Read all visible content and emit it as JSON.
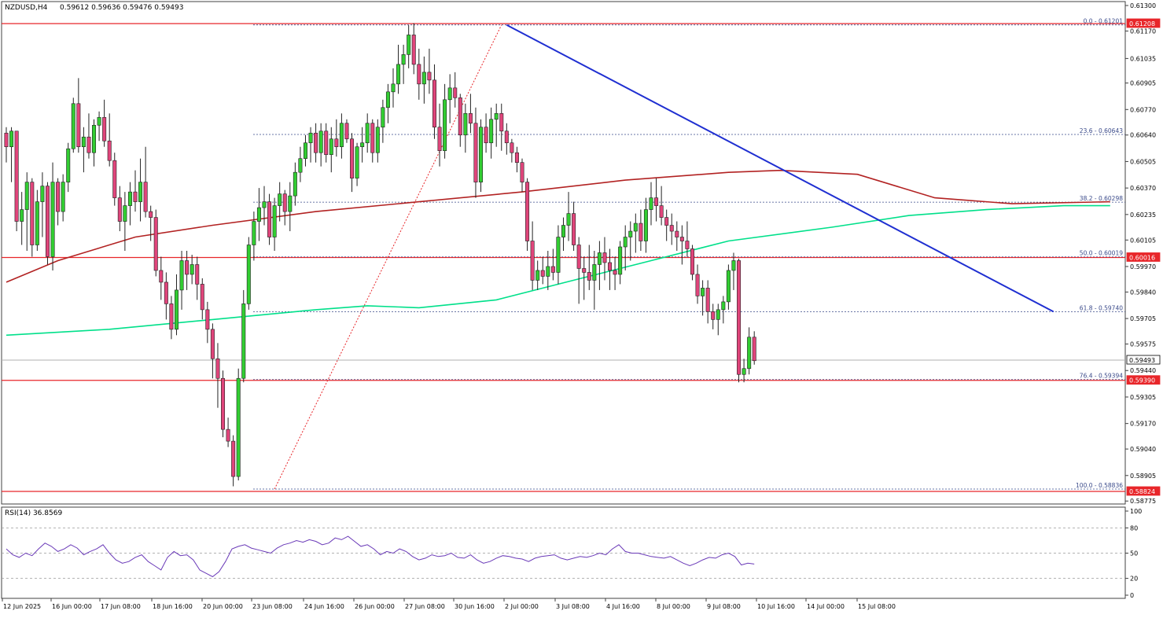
{
  "header": {
    "symbol_timeframe": "NZDUSD,H4",
    "ohlc": "0.59612 0.59636 0.59476 0.59493"
  },
  "colors": {
    "bull": "#32cd32",
    "bear": "#e0457b",
    "ma_fast": "#00e08a",
    "ma_slow": "#b22222",
    "trendline": "#1f2fd1",
    "fib_level": "#3a4a8a",
    "hline": "#e8262a",
    "rsi": "#6a3ab8"
  },
  "chart_data": {
    "type": "candlestick",
    "symbol": "NZDUSD",
    "timeframe": "H4",
    "y_ticks": [
      0.613,
      0.6117,
      0.6103,
      0.60905,
      0.6077,
      0.6064,
      0.60505,
      0.6037,
      0.60235,
      0.60105,
      0.5997,
      0.5984,
      0.59705,
      0.59575,
      0.5944,
      0.59305,
      0.5917,
      0.5904,
      0.58905,
      0.58775
    ],
    "y_ticks_labels": [
      "0.61300",
      "0.61170",
      "0.61035",
      "0.60905",
      "0.60770",
      "0.60640",
      "0.60505",
      "0.60370",
      "0.60235",
      "0.60105",
      "0.59970",
      "0.59840",
      "0.59705",
      "0.59575",
      "0.59440",
      "0.59305",
      "0.59170",
      "0.59040",
      "0.58905",
      "0.58775"
    ],
    "x_tick_labels": [
      "12 Jun 2025",
      "16 Jun 00:00",
      "17 Jun 08:00",
      "18 Jun 16:00",
      "20 Jun 00:00",
      "23 Jun 08:00",
      "24 Jun 16:00",
      "26 Jun 00:00",
      "27 Jun 08:00",
      "30 Jun 16:00",
      "2 Jul 00:00",
      "3 Jul 08:00",
      "4 Jul 16:00",
      "8 Jul 00:00",
      "9 Jul 08:00",
      "10 Jul 16:00",
      "14 Jul 00:00",
      "15 Jul 08:00"
    ],
    "price_tags": [
      {
        "label": "0.61208",
        "value": 0.61208,
        "bg": "#e8262a"
      },
      {
        "label": "0.60016",
        "value": 0.60016,
        "bg": "#e8262a"
      },
      {
        "label": "0.59493",
        "value": 0.59493,
        "bg": "#ffffff"
      },
      {
        "label": "0.59390",
        "value": 0.5939,
        "bg": "#e8262a"
      },
      {
        "label": "0.58824",
        "value": 0.58824,
        "bg": "#e8262a"
      }
    ],
    "horizontal_lines": [
      0.61208,
      0.60016,
      0.5939,
      0.58824
    ],
    "current_price": 0.59493,
    "fibonacci": [
      {
        "label": "0.0 - 0.61201",
        "value": 0.61201
      },
      {
        "label": "23.6 - 0.60643",
        "value": 0.60643
      },
      {
        "label": "38.2 - 0.60298",
        "value": 0.60298
      },
      {
        "label": "50.0 - 0.60019",
        "value": 0.60019
      },
      {
        "label": "61.8 - 0.59740",
        "value": 0.5974
      },
      {
        "label": "76.4 - 0.59394",
        "value": 0.59394
      },
      {
        "label": "100.0 - 0.58836",
        "value": 0.58836
      }
    ],
    "fib_anchor_line": {
      "from": {
        "bar": 52,
        "price": 0.58836
      },
      "to": {
        "bar": 96,
        "price": 0.61201
      }
    },
    "trendline": {
      "from": {
        "bar": 97,
        "price": 0.61201
      },
      "to": {
        "bar": 203,
        "price": 0.5974
      }
    },
    "candles": [
      [
        0.6065,
        0.6068,
        0.605,
        0.6058
      ],
      [
        0.6058,
        0.6068,
        0.604,
        0.6066
      ],
      [
        0.6066,
        0.6066,
        0.6015,
        0.602
      ],
      [
        0.602,
        0.6035,
        0.6008,
        0.6026
      ],
      [
        0.6026,
        0.6045,
        0.6005,
        0.604
      ],
      [
        0.604,
        0.6042,
        0.6002,
        0.6008
      ],
      [
        0.6008,
        0.6036,
        0.6005,
        0.603
      ],
      [
        0.603,
        0.6045,
        0.6012,
        0.6038
      ],
      [
        0.6038,
        0.604,
        0.5998,
        0.6002
      ],
      [
        0.6002,
        0.605,
        0.5995,
        0.604
      ],
      [
        0.604,
        0.6042,
        0.6018,
        0.6025
      ],
      [
        0.6025,
        0.6044,
        0.602,
        0.604
      ],
      [
        0.604,
        0.606,
        0.6035,
        0.6057
      ],
      [
        0.6057,
        0.6083,
        0.6055,
        0.608
      ],
      [
        0.608,
        0.6093,
        0.6055,
        0.6058
      ],
      [
        0.6058,
        0.6068,
        0.6045,
        0.6063
      ],
      [
        0.6063,
        0.6075,
        0.6052,
        0.6055
      ],
      [
        0.6055,
        0.6072,
        0.6048,
        0.6069
      ],
      [
        0.6069,
        0.6076,
        0.6061,
        0.6073
      ],
      [
        0.6073,
        0.6082,
        0.6058,
        0.6061
      ],
      [
        0.6061,
        0.6075,
        0.6048,
        0.6051
      ],
      [
        0.6051,
        0.6055,
        0.6028,
        0.6032
      ],
      [
        0.6032,
        0.6038,
        0.6015,
        0.602
      ],
      [
        0.602,
        0.6035,
        0.6005,
        0.6028
      ],
      [
        0.6028,
        0.604,
        0.6018,
        0.6035
      ],
      [
        0.6035,
        0.6046,
        0.6025,
        0.603
      ],
      [
        0.603,
        0.6052,
        0.602,
        0.604
      ],
      [
        0.604,
        0.6058,
        0.6022,
        0.6025
      ],
      [
        0.6025,
        0.6028,
        0.601,
        0.6022
      ],
      [
        0.6022,
        0.6026,
        0.5992,
        0.5995
      ],
      [
        0.5995,
        0.6002,
        0.598,
        0.5989
      ],
      [
        0.5989,
        0.5994,
        0.597,
        0.5978
      ],
      [
        0.5978,
        0.5982,
        0.596,
        0.5965
      ],
      [
        0.5965,
        0.5993,
        0.5962,
        0.5985
      ],
      [
        0.5985,
        0.6005,
        0.5975,
        0.6
      ],
      [
        0.6,
        0.6005,
        0.5985,
        0.5993
      ],
      [
        0.5993,
        0.6003,
        0.5988,
        0.5998
      ],
      [
        0.5998,
        0.6002,
        0.598,
        0.5988
      ],
      [
        0.5988,
        0.5991,
        0.597,
        0.5975
      ],
      [
        0.5975,
        0.5979,
        0.5958,
        0.5965
      ],
      [
        0.5965,
        0.5968,
        0.594,
        0.595
      ],
      [
        0.595,
        0.5958,
        0.5925,
        0.594
      ],
      [
        0.594,
        0.5944,
        0.591,
        0.5914
      ],
      [
        0.5914,
        0.592,
        0.5905,
        0.5908
      ],
      [
        0.5908,
        0.5911,
        0.5885,
        0.589
      ],
      [
        0.589,
        0.5945,
        0.5888,
        0.594
      ],
      [
        0.594,
        0.5985,
        0.5938,
        0.5978
      ],
      [
        0.5978,
        0.6012,
        0.5975,
        0.6008
      ],
      [
        0.6008,
        0.6025,
        0.6,
        0.602
      ],
      [
        0.602,
        0.6037,
        0.601,
        0.6027
      ],
      [
        0.6027,
        0.6038,
        0.6018,
        0.603
      ],
      [
        0.603,
        0.6034,
        0.6008,
        0.6012
      ],
      [
        0.6012,
        0.6032,
        0.6005,
        0.6028
      ],
      [
        0.6028,
        0.604,
        0.602,
        0.6034
      ],
      [
        0.6034,
        0.6036,
        0.6018,
        0.6025
      ],
      [
        0.6025,
        0.604,
        0.6015,
        0.6033
      ],
      [
        0.6033,
        0.605,
        0.6028,
        0.6045
      ],
      [
        0.6045,
        0.6058,
        0.604,
        0.6052
      ],
      [
        0.6052,
        0.6064,
        0.6048,
        0.606
      ],
      [
        0.606,
        0.6068,
        0.605,
        0.6065
      ],
      [
        0.6065,
        0.607,
        0.605,
        0.6055
      ],
      [
        0.6055,
        0.607,
        0.6048,
        0.6066
      ],
      [
        0.6066,
        0.607,
        0.605,
        0.6054
      ],
      [
        0.6054,
        0.6068,
        0.6045,
        0.6062
      ],
      [
        0.6062,
        0.6072,
        0.6053,
        0.6058
      ],
      [
        0.6058,
        0.6075,
        0.6052,
        0.607
      ],
      [
        0.607,
        0.6072,
        0.606,
        0.6062
      ],
      [
        0.6062,
        0.6065,
        0.6035,
        0.6042
      ],
      [
        0.6042,
        0.606,
        0.6038,
        0.6058
      ],
      [
        0.6058,
        0.6068,
        0.605,
        0.606
      ],
      [
        0.606,
        0.6075,
        0.6055,
        0.607
      ],
      [
        0.607,
        0.6072,
        0.605,
        0.6055
      ],
      [
        0.6055,
        0.6072,
        0.605,
        0.6068
      ],
      [
        0.6068,
        0.6082,
        0.606,
        0.6078
      ],
      [
        0.6078,
        0.609,
        0.607,
        0.6086
      ],
      [
        0.6086,
        0.6098,
        0.6078,
        0.609
      ],
      [
        0.609,
        0.611,
        0.6085,
        0.61
      ],
      [
        0.61,
        0.611,
        0.609,
        0.6105
      ],
      [
        0.6105,
        0.612,
        0.6098,
        0.6115
      ],
      [
        0.6115,
        0.6121,
        0.6095,
        0.61
      ],
      [
        0.61,
        0.6108,
        0.6082,
        0.609
      ],
      [
        0.609,
        0.6104,
        0.608,
        0.6096
      ],
      [
        0.6096,
        0.6108,
        0.6085,
        0.6092
      ],
      [
        0.6092,
        0.61,
        0.6062,
        0.6068
      ],
      [
        0.6068,
        0.608,
        0.6048,
        0.6056
      ],
      [
        0.6056,
        0.609,
        0.6052,
        0.6082
      ],
      [
        0.6082,
        0.6095,
        0.607,
        0.6088
      ],
      [
        0.6088,
        0.6096,
        0.6078,
        0.6083
      ],
      [
        0.6083,
        0.6085,
        0.6058,
        0.6064
      ],
      [
        0.6064,
        0.608,
        0.6055,
        0.6075
      ],
      [
        0.6075,
        0.6085,
        0.6065,
        0.607
      ],
      [
        0.607,
        0.6078,
        0.6032,
        0.604
      ],
      [
        0.604,
        0.6072,
        0.6035,
        0.6068
      ],
      [
        0.6068,
        0.6075,
        0.6055,
        0.606
      ],
      [
        0.606,
        0.6078,
        0.6052,
        0.6072
      ],
      [
        0.6072,
        0.608,
        0.6058,
        0.6075
      ],
      [
        0.6075,
        0.608,
        0.6056,
        0.6066
      ],
      [
        0.6066,
        0.607,
        0.6054,
        0.606
      ],
      [
        0.606,
        0.6062,
        0.605,
        0.6055
      ],
      [
        0.6055,
        0.6058,
        0.6045,
        0.605
      ],
      [
        0.605,
        0.6052,
        0.6035,
        0.604
      ],
      [
        0.604,
        0.6042,
        0.6005,
        0.601
      ],
      [
        0.601,
        0.602,
        0.5985,
        0.599
      ],
      [
        0.599,
        0.6,
        0.5985,
        0.5995
      ],
      [
        0.5995,
        0.6002,
        0.5988,
        0.5992
      ],
      [
        0.5992,
        0.6005,
        0.5985,
        0.5997
      ],
      [
        0.5997,
        0.6006,
        0.599,
        0.5994
      ],
      [
        0.5994,
        0.6018,
        0.5988,
        0.6012
      ],
      [
        0.6012,
        0.6022,
        0.6005,
        0.6018
      ],
      [
        0.6018,
        0.6035,
        0.601,
        0.6024
      ],
      [
        0.6024,
        0.603,
        0.6005,
        0.6008
      ],
      [
        0.6008,
        0.6012,
        0.5978,
        0.5996
      ],
      [
        0.5996,
        0.6002,
        0.598,
        0.5994
      ],
      [
        0.5994,
        0.6008,
        0.5985,
        0.599
      ],
      [
        0.599,
        0.6005,
        0.5975,
        0.5998
      ],
      [
        0.5998,
        0.601,
        0.5985,
        0.6004
      ],
      [
        0.6004,
        0.6012,
        0.599,
        0.5999
      ],
      [
        0.5999,
        0.6006,
        0.5985,
        0.5995
      ],
      [
        0.5995,
        0.6002,
        0.5985,
        0.5993
      ],
      [
        0.5993,
        0.601,
        0.5988,
        0.6007
      ],
      [
        0.6007,
        0.6018,
        0.5995,
        0.6012
      ],
      [
        0.6012,
        0.602,
        0.6,
        0.6015
      ],
      [
        0.6015,
        0.6024,
        0.6004,
        0.6019
      ],
      [
        0.6019,
        0.6026,
        0.6005,
        0.601
      ],
      [
        0.601,
        0.6032,
        0.6004,
        0.6026
      ],
      [
        0.6026,
        0.604,
        0.6018,
        0.6032
      ],
      [
        0.6032,
        0.6042,
        0.602,
        0.6028
      ],
      [
        0.6028,
        0.6038,
        0.6018,
        0.6022
      ],
      [
        0.6022,
        0.6026,
        0.601,
        0.6018
      ],
      [
        0.6018,
        0.6024,
        0.6008,
        0.6015
      ],
      [
        0.6015,
        0.602,
        0.6005,
        0.6012
      ],
      [
        0.6012,
        0.6018,
        0.5998,
        0.601
      ],
      [
        0.601,
        0.602,
        0.6002,
        0.6006
      ],
      [
        0.6006,
        0.6008,
        0.599,
        0.5993
      ],
      [
        0.5993,
        0.5998,
        0.5978,
        0.5982
      ],
      [
        0.5982,
        0.599,
        0.5972,
        0.5986
      ],
      [
        0.5986,
        0.599,
        0.5968,
        0.5974
      ],
      [
        0.5974,
        0.5978,
        0.5965,
        0.597
      ],
      [
        0.597,
        0.5978,
        0.5962,
        0.5975
      ],
      [
        0.5975,
        0.5982,
        0.5968,
        0.5979
      ],
      [
        0.5979,
        0.5998,
        0.5975,
        0.5995
      ],
      [
        0.5995,
        0.6004,
        0.5985,
        0.6
      ],
      [
        0.6,
        0.6001,
        0.5938,
        0.5942
      ],
      [
        0.5942,
        0.595,
        0.5938,
        0.5945
      ],
      [
        0.5945,
        0.5966,
        0.5942,
        0.5961
      ],
      [
        0.5961,
        0.5964,
        0.5947,
        0.5949
      ]
    ],
    "ma_fast_points": [
      [
        0,
        0.5962
      ],
      [
        20,
        0.5965
      ],
      [
        40,
        0.597
      ],
      [
        60,
        0.5975
      ],
      [
        70,
        0.5977
      ],
      [
        80,
        0.5976
      ],
      [
        95,
        0.598
      ],
      [
        110,
        0.599
      ],
      [
        125,
        0.6
      ],
      [
        140,
        0.601
      ],
      [
        160,
        0.6017
      ],
      [
        175,
        0.6023
      ],
      [
        190,
        0.6026
      ],
      [
        205,
        0.6028
      ],
      [
        214,
        0.6028
      ]
    ],
    "ma_slow_points": [
      [
        0,
        0.5989
      ],
      [
        10,
        0.6
      ],
      [
        25,
        0.6012
      ],
      [
        40,
        0.6018
      ],
      [
        60,
        0.6025
      ],
      [
        80,
        0.603
      ],
      [
        100,
        0.6035
      ],
      [
        120,
        0.6041
      ],
      [
        140,
        0.6045
      ],
      [
        150,
        0.6046
      ],
      [
        165,
        0.6044
      ],
      [
        180,
        0.6032
      ],
      [
        195,
        0.6029
      ],
      [
        214,
        0.603
      ]
    ],
    "rsi": {
      "label": "RSI(14) 36.8569",
      "levels": [
        "100",
        "80",
        "50",
        "20",
        "0"
      ],
      "ylim": [
        0,
        100
      ],
      "guides": [
        80,
        50,
        20
      ],
      "values": [
        55,
        48,
        45,
        50,
        47,
        55,
        62,
        58,
        52,
        55,
        60,
        56,
        48,
        52,
        55,
        60,
        50,
        42,
        38,
        40,
        45,
        48,
        40,
        35,
        30,
        45,
        52,
        47,
        48,
        42,
        30,
        26,
        22,
        28,
        40,
        55,
        58,
        60,
        56,
        54,
        52,
        50,
        56,
        60,
        62,
        65,
        63,
        66,
        64,
        60,
        62,
        68,
        66,
        70,
        64,
        58,
        60,
        55,
        48,
        52,
        50,
        55,
        52,
        46,
        42,
        44,
        48,
        46,
        47,
        50,
        45,
        44,
        48,
        42,
        38,
        40,
        44,
        47,
        46,
        44,
        43,
        40,
        44,
        46,
        47,
        48,
        44,
        42,
        44,
        46,
        45,
        47,
        50,
        48,
        55,
        60,
        52,
        50,
        50,
        48,
        46,
        45,
        44,
        46,
        42,
        38,
        35,
        38,
        42,
        45,
        44,
        48,
        50,
        46,
        36,
        38,
        37
      ]
    }
  }
}
